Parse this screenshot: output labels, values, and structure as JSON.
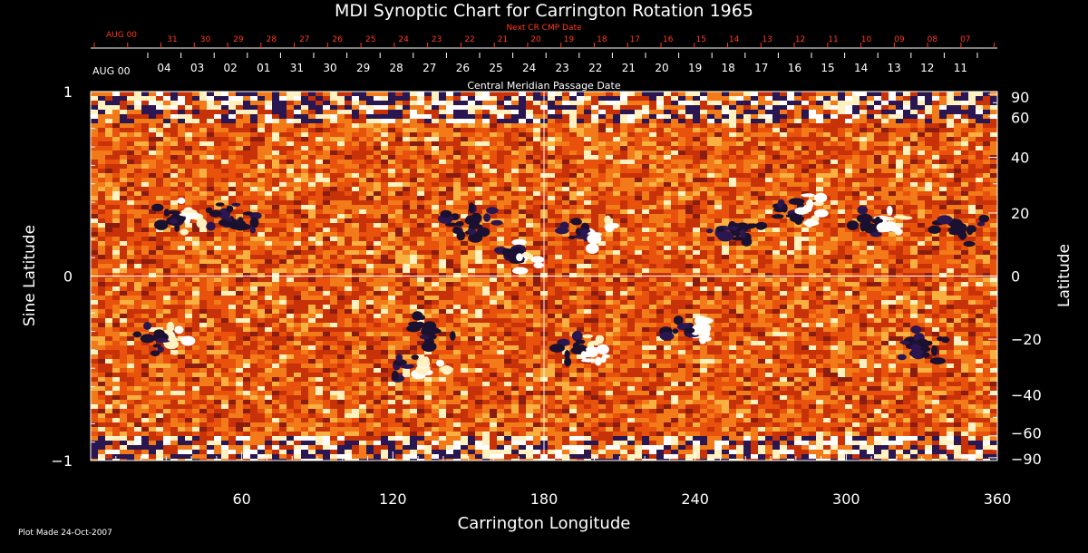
{
  "chart_data": {
    "type": "heatmap",
    "title": "MDI Synoptic Chart for Carrington Rotation 1965",
    "xlabel": "Carrington Longitude",
    "ylabel_left": "Sine Latitude",
    "ylabel_right": "Latitude",
    "xlim": [
      0,
      360
    ],
    "ylim": [
      -1,
      1
    ],
    "x_ticks": [
      60,
      120,
      180,
      240,
      300,
      360
    ],
    "y_ticks_left": [
      {
        "value": 1,
        "label": "1"
      },
      {
        "value": 0,
        "label": "0"
      },
      {
        "value": -1,
        "label": "−1"
      }
    ],
    "y_ticks_right": [
      {
        "deg": 90,
        "label": "90"
      },
      {
        "deg": 60,
        "label": "60"
      },
      {
        "deg": 40,
        "label": "40"
      },
      {
        "deg": 20,
        "label": "20"
      },
      {
        "deg": 0,
        "label": "0"
      },
      {
        "deg": -20,
        "label": "−20"
      },
      {
        "deg": -40,
        "label": "−40"
      },
      {
        "deg": -60,
        "label": "−60"
      },
      {
        "deg": -90,
        "label": "−90"
      }
    ],
    "top_axis_next_cr": {
      "title": "Next CR CMP Date",
      "month_label": "AUG 00",
      "labels": [
        "31",
        "30",
        "29",
        "28",
        "27",
        "26",
        "25",
        "24",
        "23",
        "22",
        "21",
        "20",
        "19",
        "18",
        "17",
        "16",
        "15",
        "14",
        "13",
        "12",
        "11",
        "10",
        "09",
        "08",
        "07"
      ]
    },
    "top_axis_cmp": {
      "title": "Central Meridian Passage Date",
      "month_label": "AUG 00",
      "labels": [
        "04",
        "03",
        "02",
        "01",
        "31",
        "30",
        "29",
        "28",
        "27",
        "26",
        "25",
        "24",
        "23",
        "22",
        "21",
        "20",
        "19",
        "18",
        "17",
        "16",
        "15",
        "14",
        "13",
        "12",
        "11"
      ]
    },
    "reference_lines": {
      "x": 180,
      "y": 0
    },
    "colormap": [
      "#1a1030",
      "#2a1650",
      "#8a1d10",
      "#c83208",
      "#e8520c",
      "#f27a18",
      "#f8b040",
      "#fff2c0",
      "#ffffff"
    ],
    "active_regions": [
      {
        "lon": 36,
        "sinlat": 0.33,
        "polarity": "mixed"
      },
      {
        "lon": 56,
        "sinlat": 0.3,
        "polarity": "neg"
      },
      {
        "lon": 150,
        "sinlat": 0.3,
        "polarity": "neg"
      },
      {
        "lon": 170,
        "sinlat": 0.12,
        "polarity": "mixed"
      },
      {
        "lon": 197,
        "sinlat": 0.24,
        "polarity": "mixed"
      },
      {
        "lon": 256,
        "sinlat": 0.26,
        "polarity": "neg"
      },
      {
        "lon": 282,
        "sinlat": 0.36,
        "polarity": "mixed"
      },
      {
        "lon": 313,
        "sinlat": 0.3,
        "polarity": "mixed"
      },
      {
        "lon": 345,
        "sinlat": 0.26,
        "polarity": "neg"
      },
      {
        "lon": 30,
        "sinlat": -0.33,
        "polarity": "mixed"
      },
      {
        "lon": 130,
        "sinlat": -0.5,
        "polarity": "mixed"
      },
      {
        "lon": 135,
        "sinlat": -0.3,
        "polarity": "neg"
      },
      {
        "lon": 195,
        "sinlat": -0.4,
        "polarity": "mixed"
      },
      {
        "lon": 240,
        "sinlat": -0.3,
        "polarity": "mixed"
      },
      {
        "lon": 330,
        "sinlat": -0.38,
        "polarity": "neg"
      }
    ]
  },
  "footer": {
    "plot_made": "Plot Made 24-Oct-2007"
  },
  "colors": {
    "background": "#000000",
    "axis": "#ffffff",
    "top_axis_red": "#ff3b1f",
    "grid": "#ffffff"
  }
}
